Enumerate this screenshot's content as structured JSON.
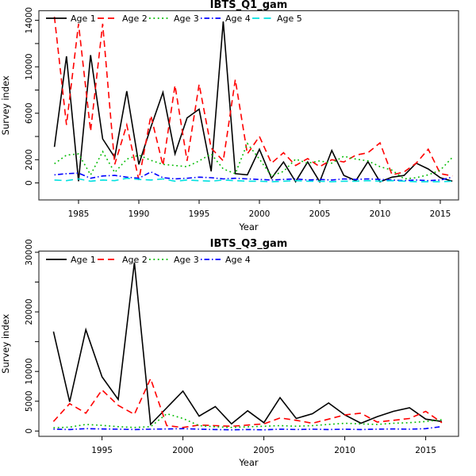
{
  "page": {
    "background": "#ffffff"
  },
  "chart_data": [
    {
      "id": "ibts-q1",
      "type": "line",
      "title": "IBTS_Q1_gam",
      "xlabel": "Year",
      "ylabel": "Survey index",
      "legend_position": "top-left-horizontal",
      "grid": false,
      "ylim": [
        0,
        14800
      ],
      "xlim": [
        1982,
        2017
      ],
      "xticks": [
        1985,
        1990,
        1995,
        2000,
        2005,
        2010,
        2015
      ],
      "yticks_labeled": [
        0,
        2000,
        6000,
        10000,
        14000
      ],
      "yticks_minor": [
        4000,
        8000,
        12000
      ],
      "x": [
        1983,
        1984,
        1985,
        1986,
        1987,
        1988,
        1989,
        1990,
        1991,
        1992,
        1993,
        1994,
        1995,
        1996,
        1997,
        1998,
        1999,
        2000,
        2001,
        2002,
        2003,
        2004,
        2005,
        2006,
        2007,
        2008,
        2009,
        2010,
        2011,
        2012,
        2013,
        2014,
        2015,
        2016
      ],
      "series": [
        {
          "name": "Age 1",
          "color": "#000000",
          "style": "solid",
          "values": [
            3100,
            10900,
            150,
            11000,
            3800,
            2200,
            7900,
            1600,
            4800,
            7800,
            2500,
            5600,
            6350,
            1000,
            13900,
            800,
            700,
            2900,
            400,
            1800,
            100,
            1800,
            100,
            2800,
            650,
            200,
            1830,
            100,
            500,
            650,
            1700,
            1200,
            450,
            150
          ]
        },
        {
          "name": "Age 2",
          "color": "#ff0000",
          "style": "dashed",
          "values": [
            14300,
            5000,
            13700,
            4450,
            13700,
            1600,
            5000,
            250,
            5800,
            1500,
            8400,
            1900,
            8500,
            3000,
            1900,
            8900,
            2500,
            4000,
            1700,
            2600,
            1500,
            2100,
            1400,
            2000,
            1800,
            2400,
            2600,
            3450,
            700,
            950,
            1700,
            2900,
            800,
            600
          ]
        },
        {
          "name": "Age 3",
          "color": "#00bb00",
          "style": "dotted",
          "values": [
            1650,
            2400,
            2500,
            700,
            2700,
            900,
            2050,
            2400,
            1950,
            1600,
            1500,
            1400,
            1900,
            2500,
            1200,
            800,
            3400,
            2050,
            600,
            1000,
            2050,
            1700,
            1900,
            1700,
            2300,
            2050,
            1900,
            1400,
            1100,
            350,
            450,
            700,
            1100,
            2200
          ]
        },
        {
          "name": "Age 4",
          "color": "#0000ff",
          "style": "dashdot",
          "values": [
            700,
            800,
            850,
            400,
            600,
            650,
            500,
            400,
            950,
            450,
            350,
            400,
            500,
            450,
            350,
            400,
            350,
            300,
            250,
            300,
            350,
            250,
            300,
            250,
            350,
            300,
            350,
            300,
            250,
            200,
            250,
            200,
            250,
            500
          ]
        },
        {
          "name": "Age 5",
          "color": "#00e0e0",
          "style": "longdash",
          "values": [
            250,
            200,
            350,
            150,
            250,
            200,
            400,
            300,
            250,
            350,
            150,
            250,
            200,
            150,
            250,
            200,
            150,
            150,
            100,
            150,
            200,
            150,
            150,
            100,
            150,
            150,
            200,
            150,
            200,
            150,
            100,
            100,
            100,
            150
          ]
        }
      ]
    },
    {
      "id": "ibts-q3",
      "type": "line",
      "title": "IBTS_Q3_gam",
      "xlabel": "Year",
      "ylabel": "Survey index",
      "legend_position": "top-left-horizontal",
      "grid": false,
      "ylim": [
        0,
        30500
      ],
      "xlim": [
        1991,
        2017
      ],
      "xticks": [
        1995,
        2000,
        2005,
        2010,
        2015
      ],
      "yticks_labeled": [
        0,
        5000,
        10000,
        20000,
        30000
      ],
      "yticks_minor": [
        15000,
        25000
      ],
      "x": [
        1992,
        1993,
        1994,
        1995,
        1996,
        1997,
        1998,
        1999,
        2000,
        2001,
        2002,
        2003,
        2004,
        2005,
        2006,
        2007,
        2008,
        2009,
        2010,
        2011,
        2012,
        2013,
        2014,
        2015,
        2016
      ],
      "series": [
        {
          "name": "Age 1",
          "color": "#000000",
          "style": "solid",
          "values": [
            16700,
            4900,
            17000,
            9100,
            5300,
            28300,
            1100,
            3900,
            6700,
            2500,
            4100,
            1200,
            3400,
            1400,
            5600,
            2100,
            2900,
            4700,
            2700,
            1300,
            2400,
            3300,
            3900,
            2000,
            1600
          ]
        },
        {
          "name": "Age 2",
          "color": "#ff0000",
          "style": "dashed",
          "values": [
            1600,
            4600,
            3000,
            6900,
            4300,
            2800,
            8800,
            900,
            600,
            1000,
            900,
            800,
            1000,
            1200,
            2200,
            1800,
            1300,
            2000,
            2700,
            3000,
            1500,
            1800,
            2100,
            3300,
            1400
          ]
        },
        {
          "name": "Age 3",
          "color": "#00bb00",
          "style": "dotted",
          "values": [
            550,
            650,
            1100,
            950,
            730,
            600,
            730,
            2900,
            2100,
            900,
            700,
            600,
            700,
            800,
            900,
            800,
            900,
            1100,
            1300,
            1200,
            1100,
            1300,
            1400,
            1600,
            1900
          ]
        },
        {
          "name": "Age 4",
          "color": "#0000ff",
          "style": "dashdot",
          "values": [
            300,
            250,
            400,
            350,
            300,
            250,
            300,
            350,
            400,
            300,
            250,
            200,
            250,
            200,
            300,
            250,
            300,
            250,
            300,
            250,
            300,
            350,
            300,
            400,
            750
          ]
        }
      ]
    }
  ]
}
